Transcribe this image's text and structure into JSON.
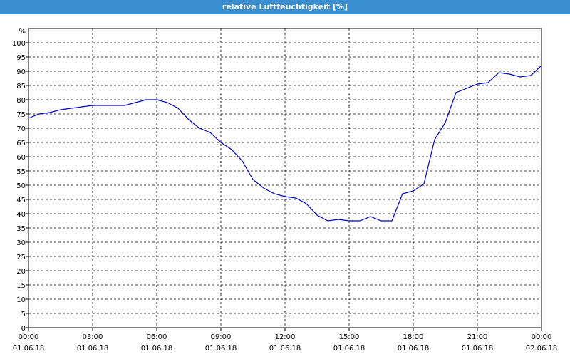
{
  "window": {
    "title": "relative Luftfeuchtigkeit [%]"
  },
  "chart_data": {
    "type": "line",
    "title": "relative Luftfeuchtigkeit [%]",
    "ylabel": "%",
    "xlabel": "",
    "ylim": [
      0,
      105
    ],
    "xlim": [
      "01.06.18 00:00",
      "02.06.18 00:00"
    ],
    "grid": true,
    "line_color": "#0000cc",
    "y_ticks": [
      0,
      5,
      10,
      15,
      20,
      25,
      30,
      35,
      40,
      45,
      50,
      55,
      60,
      65,
      70,
      75,
      80,
      85,
      90,
      95,
      100
    ],
    "x_ticks": [
      {
        "time": "00:00",
        "date": "01.06.18",
        "hour": 0
      },
      {
        "time": "03:00",
        "date": "01.06.18",
        "hour": 3
      },
      {
        "time": "06:00",
        "date": "01.06.18",
        "hour": 6
      },
      {
        "time": "09:00",
        "date": "01.06.18",
        "hour": 9
      },
      {
        "time": "12:00",
        "date": "01.06.18",
        "hour": 12
      },
      {
        "time": "15:00",
        "date": "01.06.18",
        "hour": 15
      },
      {
        "time": "18:00",
        "date": "01.06.18",
        "hour": 18
      },
      {
        "time": "21:00",
        "date": "01.06.18",
        "hour": 21
      },
      {
        "time": "00:00",
        "date": "02.06.18",
        "hour": 24
      }
    ],
    "series": [
      {
        "x": [
          0,
          0.5,
          1,
          1.5,
          2,
          2.5,
          3,
          3.5,
          4,
          4.5,
          5,
          5.5,
          6,
          6.5,
          7,
          7.5,
          8,
          8.5,
          9,
          9.5,
          10,
          10.5,
          11,
          11.5,
          12,
          12.5,
          13,
          13.5,
          14,
          14.5,
          15,
          15.5,
          16,
          16.5,
          17,
          17.5,
          18,
          18.5,
          19,
          19.5,
          20,
          20.5,
          21,
          21.5,
          22,
          22.5,
          23,
          23.5,
          24
        ],
        "values": [
          73.5,
          75,
          75.5,
          76.5,
          77,
          77.5,
          78,
          78,
          78,
          78,
          79,
          80,
          80,
          79,
          77,
          73,
          70,
          68.5,
          65,
          62.5,
          58.5,
          52,
          49,
          47,
          46,
          45.5,
          43.5,
          39.5,
          37.5,
          38,
          37.5,
          37.5,
          39,
          37.5,
          37.5,
          47,
          48,
          50.5,
          66,
          72,
          82.5,
          84,
          85.5,
          86,
          89.5,
          89,
          88,
          88.5,
          92
        ]
      }
    ]
  }
}
